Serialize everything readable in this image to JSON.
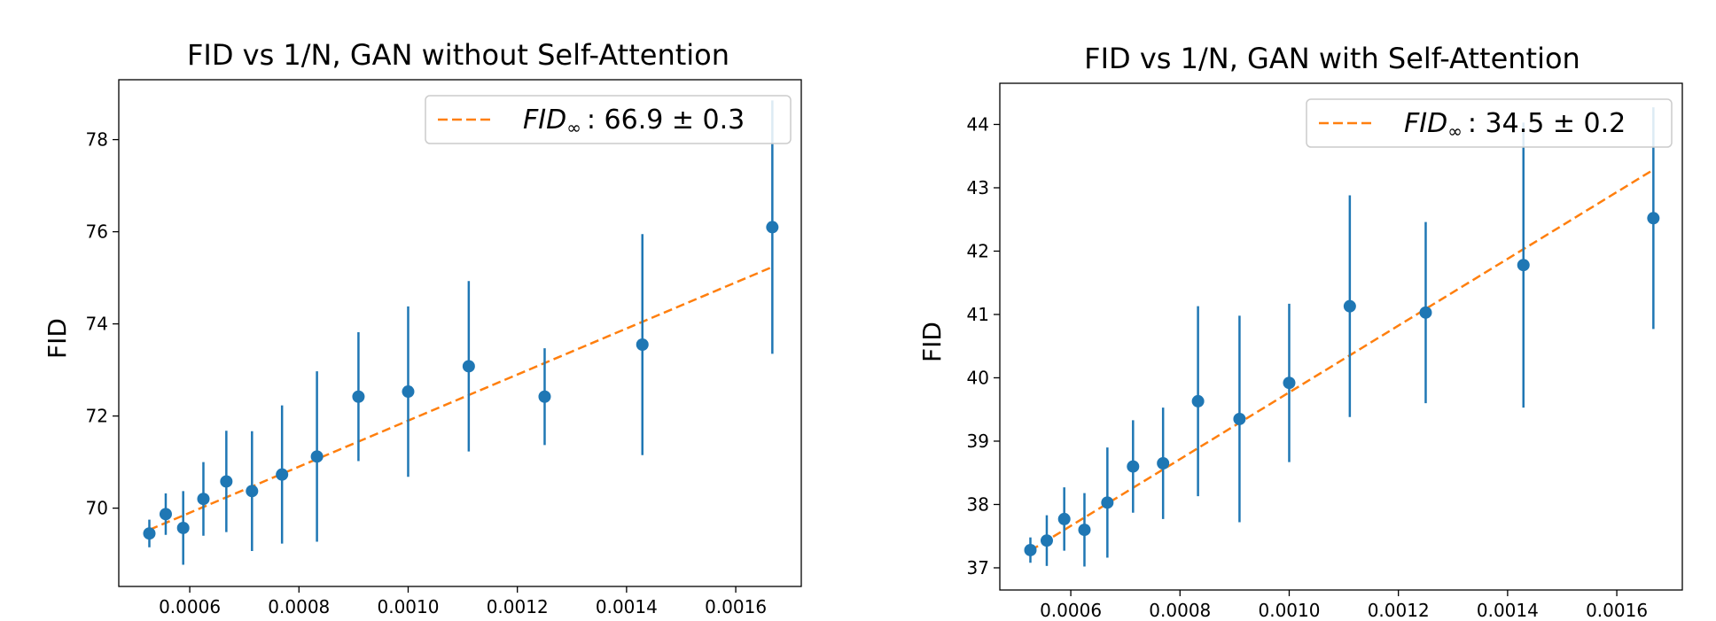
{
  "colors": {
    "points": "#1f77b4",
    "fit": "#ff7f0e",
    "frame": "#000000"
  },
  "chart_data": [
    {
      "type": "scatter",
      "title": "FID vs 1/N, GAN without Self-Attention",
      "xlabel": "",
      "ylabel": "FID",
      "xlim": [
        0.00047,
        0.00172
      ],
      "ylim": [
        68.3,
        79.3
      ],
      "xticks": [
        0.0006,
        0.0008,
        0.001,
        0.0012,
        0.0014,
        0.0016
      ],
      "xtick_labels": [
        "0.0006",
        "0.0008",
        "0.0010",
        "0.0012",
        "0.0014",
        "0.0016"
      ],
      "yticks": [
        70,
        72,
        74,
        76,
        78
      ],
      "ytick_labels": [
        "70",
        "72",
        "74",
        "76",
        "78"
      ],
      "grid": false,
      "legend_position": "upper-right",
      "legend": {
        "prefix": "FID",
        "subscript": "∞",
        "value_text": ": 66.9 ± 0.3"
      },
      "fit_line": {
        "style": "dashed",
        "intercept": 66.9,
        "slope": 5000
      },
      "points": [
        {
          "x": 0.000526,
          "y": 69.45,
          "err": 0.3
        },
        {
          "x": 0.000556,
          "y": 69.87,
          "err": 0.45
        },
        {
          "x": 0.000588,
          "y": 69.57,
          "err": 0.8
        },
        {
          "x": 0.000625,
          "y": 70.2,
          "err": 0.8
        },
        {
          "x": 0.000667,
          "y": 70.58,
          "err": 1.1
        },
        {
          "x": 0.000714,
          "y": 70.37,
          "err": 1.3
        },
        {
          "x": 0.000769,
          "y": 70.73,
          "err": 1.5
        },
        {
          "x": 0.000833,
          "y": 71.12,
          "err": 1.85
        },
        {
          "x": 0.000909,
          "y": 72.42,
          "err": 1.4
        },
        {
          "x": 0.001,
          "y": 72.53,
          "err": 1.85
        },
        {
          "x": 0.001111,
          "y": 73.08,
          "err": 1.85
        },
        {
          "x": 0.00125,
          "y": 72.42,
          "err": 1.05
        },
        {
          "x": 0.001429,
          "y": 73.55,
          "err": 2.4
        },
        {
          "x": 0.001667,
          "y": 76.1,
          "err": 2.75
        }
      ]
    },
    {
      "type": "scatter",
      "title": "FID vs 1/N, GAN with Self-Attention",
      "xlabel": "",
      "ylabel": "FID",
      "xlim": [
        0.00047,
        0.00172
      ],
      "ylim": [
        36.65,
        44.65
      ],
      "xticks": [
        0.0006,
        0.0008,
        0.001,
        0.0012,
        0.0014,
        0.0016
      ],
      "xtick_labels": [
        "0.0006",
        "0.0008",
        "0.0010",
        "0.0012",
        "0.0014",
        "0.0016"
      ],
      "yticks": [
        37,
        38,
        39,
        40,
        41,
        42,
        43,
        44
      ],
      "ytick_labels": [
        "37",
        "38",
        "39",
        "40",
        "41",
        "42",
        "43",
        "44"
      ],
      "grid": false,
      "legend_position": "upper-right",
      "legend": {
        "prefix": "FID",
        "subscript": "∞",
        "value_text": ": 34.5 ± 0.2"
      },
      "fit_line": {
        "style": "dashed",
        "intercept": 34.5,
        "slope": 5270
      },
      "points": [
        {
          "x": 0.000526,
          "y": 37.28,
          "err": 0.2
        },
        {
          "x": 0.000556,
          "y": 37.43,
          "err": 0.4
        },
        {
          "x": 0.000588,
          "y": 37.77,
          "err": 0.5
        },
        {
          "x": 0.000625,
          "y": 37.6,
          "err": 0.58
        },
        {
          "x": 0.000667,
          "y": 38.03,
          "err": 0.87
        },
        {
          "x": 0.000714,
          "y": 38.6,
          "err": 0.73
        },
        {
          "x": 0.000769,
          "y": 38.65,
          "err": 0.88
        },
        {
          "x": 0.000833,
          "y": 39.63,
          "err": 1.5
        },
        {
          "x": 0.000909,
          "y": 39.35,
          "err": 1.63
        },
        {
          "x": 0.001,
          "y": 39.92,
          "err": 1.25
        },
        {
          "x": 0.001111,
          "y": 41.13,
          "err": 1.75
        },
        {
          "x": 0.00125,
          "y": 41.03,
          "err": 1.43
        },
        {
          "x": 0.001429,
          "y": 41.78,
          "err": 2.25
        },
        {
          "x": 0.001667,
          "y": 42.52,
          "err": 1.75
        }
      ]
    }
  ]
}
